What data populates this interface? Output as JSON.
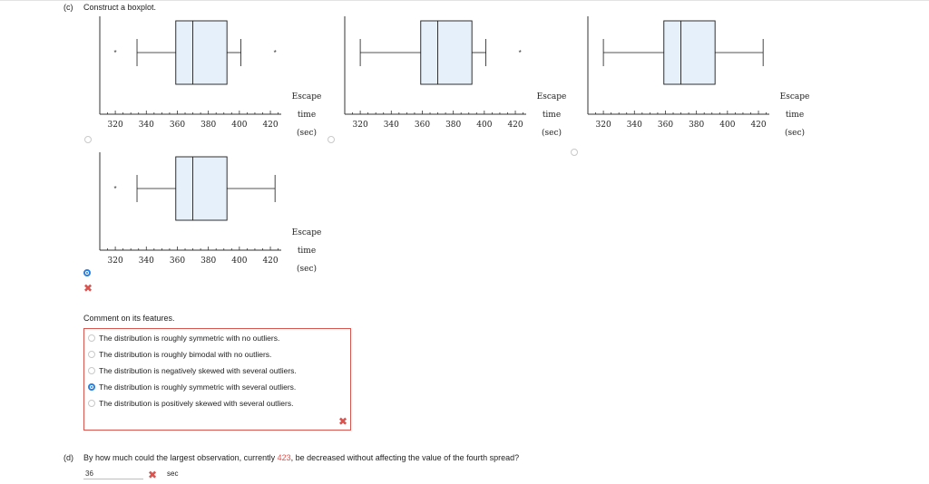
{
  "part_c": {
    "label": "(c)",
    "prompt": "Construct a boxplot."
  },
  "boxplot_options": [
    {
      "selected": false,
      "min": 334,
      "q1": 359,
      "median": 370,
      "q3": 392,
      "max": 401,
      "outliers": [
        320,
        423
      ],
      "tick_labels": [
        "320",
        "340",
        "360",
        "380",
        "400",
        "420"
      ],
      "axis_label": [
        "Escape",
        "time",
        "(sec)"
      ]
    },
    {
      "selected": false,
      "min": 320,
      "q1": 359,
      "median": 370,
      "q3": 392,
      "max": 401,
      "outliers": [
        423
      ],
      "tick_labels": [
        "320",
        "340",
        "360",
        "380",
        "400",
        "420"
      ],
      "axis_label": [
        "Escape",
        "time",
        "(sec)"
      ]
    },
    {
      "selected": false,
      "min": 320,
      "q1": 359,
      "median": 370,
      "q3": 392,
      "max": 423,
      "outliers": [],
      "tick_labels": [
        "320",
        "340",
        "360",
        "380",
        "400",
        "420"
      ],
      "axis_label": [
        "Escape",
        "time",
        "(sec)"
      ]
    },
    {
      "selected": true,
      "min": 334,
      "q1": 359,
      "median": 370,
      "q3": 392,
      "max": 423,
      "outliers": [
        320
      ],
      "tick_labels": [
        "320",
        "340",
        "360",
        "380",
        "400",
        "420"
      ],
      "axis_label": [
        "Escape",
        "time",
        "(sec)"
      ]
    }
  ],
  "comment_prompt": "Comment on its features.",
  "features_choices": [
    {
      "text": "The distribution is roughly symmetric with no outliers.",
      "selected": false
    },
    {
      "text": "The distribution is roughly bimodal with no outliers.",
      "selected": false
    },
    {
      "text": "The distribution is negatively skewed with several outliers.",
      "selected": false
    },
    {
      "text": "The distribution is roughly symmetric with several outliers.",
      "selected": true
    },
    {
      "text": "The distribution is positively skewed with several outliers.",
      "selected": false
    }
  ],
  "part_d": {
    "label": "(d)",
    "prompt_before": "By how much could the largest observation, currently ",
    "highlight_value": "423",
    "prompt_after": ", be decreased without affecting the value of the fourth spread?",
    "answer_value": "36",
    "unit": "sec"
  },
  "icons": {
    "wrong": "x-mark-icon",
    "mark_glyph": "✖"
  },
  "colors": {
    "box_fill": "#e6f0fb",
    "box_stroke": "#1a1a1a",
    "radio_selected": "#2a7fe0",
    "wrong": "#d9534f"
  }
}
